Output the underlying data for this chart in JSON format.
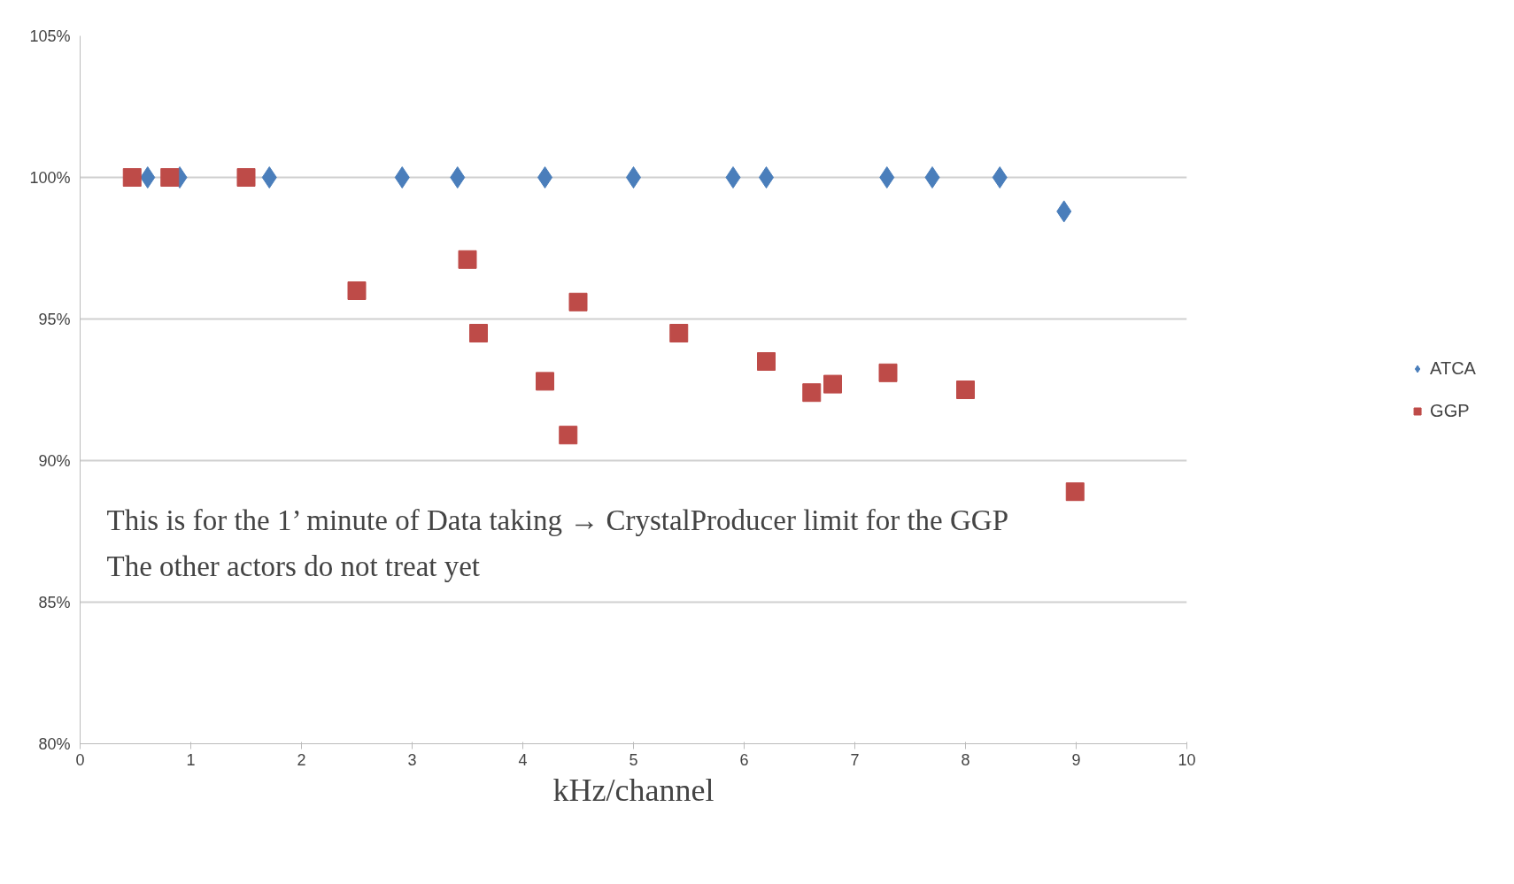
{
  "chart_data": {
    "type": "scatter",
    "xlabel": "kHz/channel",
    "legend": "right",
    "grid": "y",
    "xlim": [
      0,
      10
    ],
    "xticks": [
      0,
      1,
      2,
      3,
      4,
      5,
      6,
      7,
      8,
      9,
      10
    ],
    "ylim": [
      80,
      105
    ],
    "yticks": [
      {
        "value": 80,
        "label": "80%"
      },
      {
        "value": 85,
        "label": "85%"
      },
      {
        "value": 90,
        "label": "90%"
      },
      {
        "value": 95,
        "label": "95%"
      },
      {
        "value": 100,
        "label": "100%"
      },
      {
        "value": 105,
        "label": "105%"
      }
    ],
    "series": [
      {
        "name": "ATCA",
        "color": "#4a7ebb",
        "marker": "diamond",
        "x": [
          0.61,
          0.9,
          1.71,
          2.91,
          3.41,
          4.2,
          5.0,
          5.9,
          6.2,
          7.29,
          7.7,
          8.31,
          8.89
        ],
        "values": [
          100,
          100,
          100,
          100,
          100,
          100,
          100,
          100,
          100,
          100,
          100,
          100,
          98.8
        ]
      },
      {
        "name": "GGP",
        "color": "#be4b48",
        "marker": "square",
        "x": [
          0.47,
          0.81,
          1.5,
          2.5,
          3.5,
          3.6,
          4.2,
          4.41,
          4.5,
          5.41,
          6.2,
          6.61,
          6.8,
          7.3,
          8.0,
          8.99
        ],
        "values": [
          100,
          100,
          100,
          96.0,
          97.1,
          94.5,
          92.8,
          90.9,
          95.6,
          94.5,
          93.5,
          92.4,
          92.7,
          93.1,
          92.5,
          88.9
        ]
      }
    ],
    "annotations": [
      "This is for the 1’ minute of Data taking → CrystalProducer limit for the GGP",
      "The other actors do not treat yet"
    ]
  }
}
